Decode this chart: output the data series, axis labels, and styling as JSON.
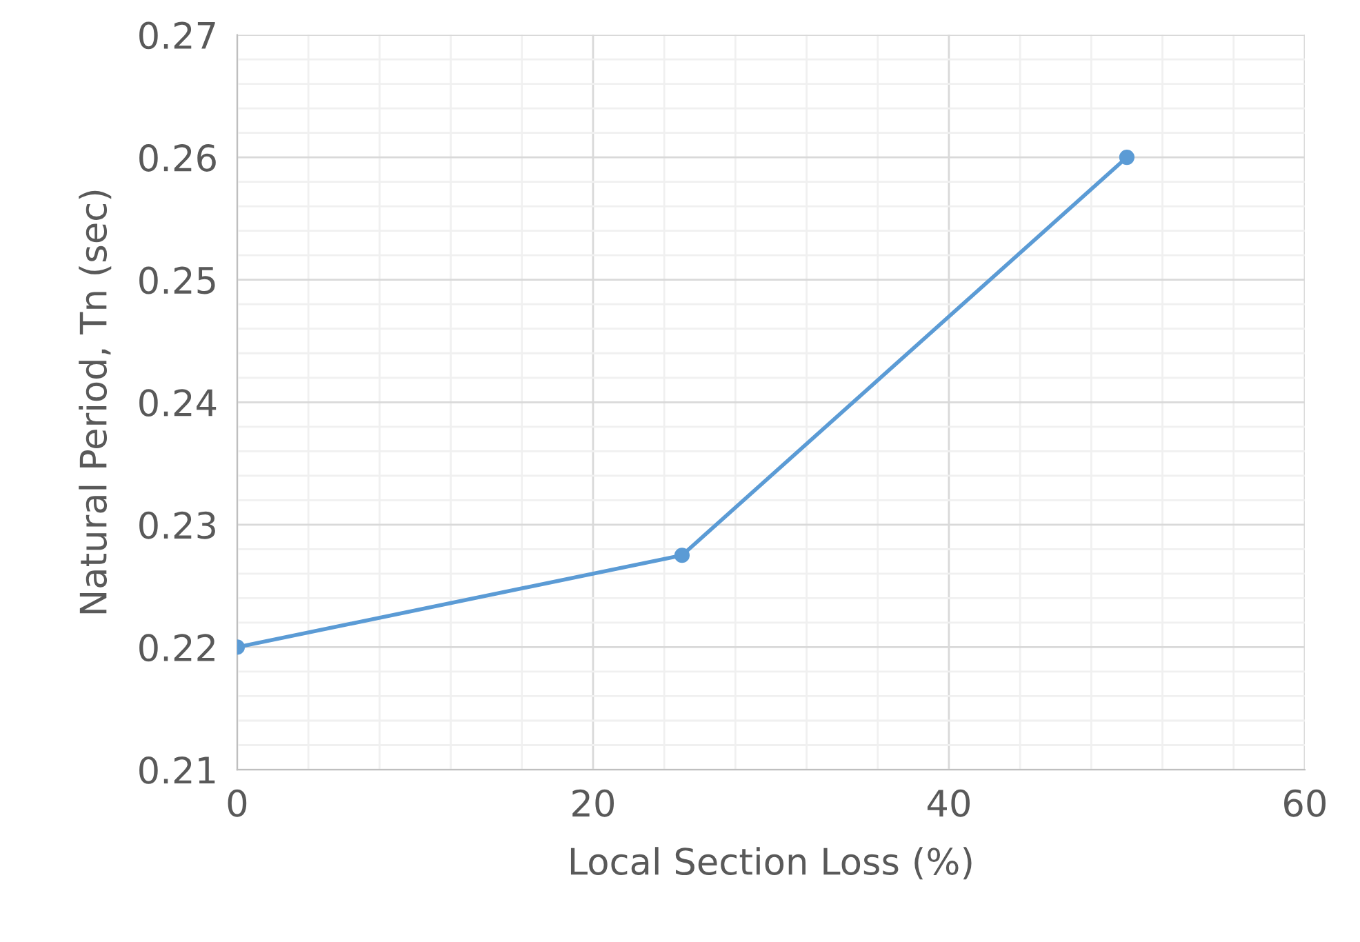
{
  "chart_data": {
    "type": "line",
    "xlabel": "Local Section Loss (%)",
    "ylabel": "Natural Period, Tn (sec)",
    "x": [
      0,
      25,
      50
    ],
    "series": [
      {
        "color": "#5b9bd5",
        "values": [
          0.22,
          0.2275,
          0.26
        ]
      }
    ],
    "xlim": [
      0,
      60
    ],
    "xticks": [
      0,
      20,
      40,
      60
    ],
    "ylim": [
      0.21,
      0.27
    ],
    "yticks": [
      0.21,
      0.22,
      0.23,
      0.24,
      0.25,
      0.26,
      0.27
    ],
    "grid": true,
    "marker": "circle",
    "line_style": "solid",
    "legend": false
  }
}
